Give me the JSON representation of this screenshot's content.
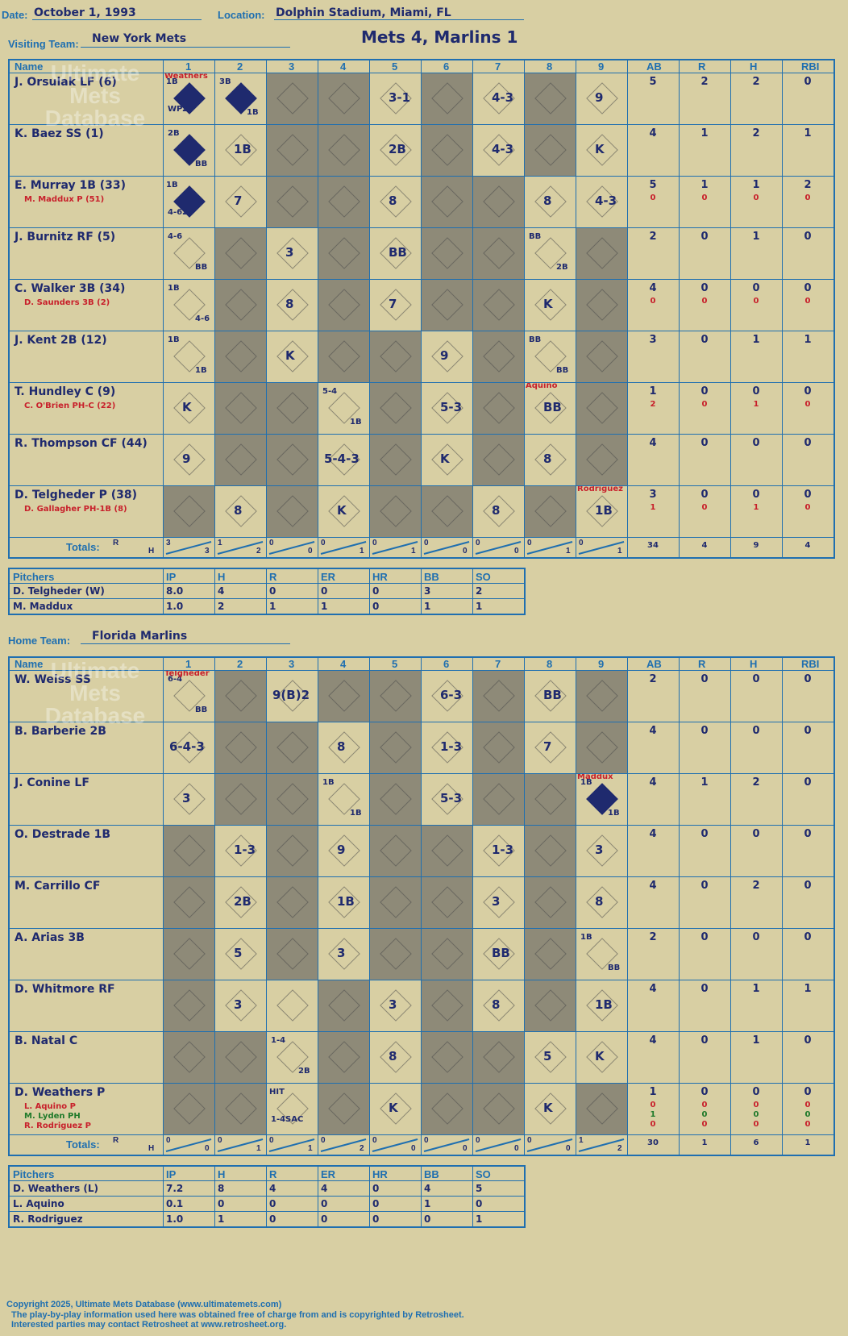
{
  "header": {
    "date_label": "Date:",
    "date": "October 1, 1993",
    "location_label": "Location:",
    "location": "Dolphin Stadium, Miami, FL",
    "title": "Mets 4, Marlins 1",
    "visiting_label": "Visiting Team:",
    "visiting_team": "New York Mets",
    "home_label": "Home Team:",
    "home_team": "Florida Marlins"
  },
  "columns": {
    "name": "Name",
    "innings": [
      "1",
      "2",
      "3",
      "4",
      "5",
      "6",
      "7",
      "8",
      "9"
    ],
    "ab": "AB",
    "r": "R",
    "h": "H",
    "rbi": "RBI",
    "totals": "Totals:",
    "rh_r": "R",
    "rh_h": "H"
  },
  "watermark": {
    "line1": "Ultimate",
    "line2": "Mets",
    "line3": "Database",
    "url": "ultimatemets.com"
  },
  "visitors": {
    "players": [
      {
        "name": "J. Orsulak LF (6)",
        "ab": "5",
        "r": "2",
        "h": "2",
        "rbi": "0",
        "subs": []
      },
      {
        "name": "K. Baez SS (1)",
        "ab": "4",
        "r": "1",
        "h": "2",
        "rbi": "1",
        "subs": []
      },
      {
        "name": "E. Murray 1B (33)",
        "ab": "5",
        "r": "1",
        "h": "1",
        "rbi": "2",
        "subs": [
          {
            "name": "M. Maddux P (51)",
            "ab": "0",
            "r": "0",
            "h": "0",
            "rbi": "0"
          }
        ]
      },
      {
        "name": "J. Burnitz RF (5)",
        "ab": "2",
        "r": "0",
        "h": "1",
        "rbi": "0",
        "subs": []
      },
      {
        "name": "C. Walker 3B (34)",
        "ab": "4",
        "r": "0",
        "h": "0",
        "rbi": "0",
        "subs": [
          {
            "name": "D. Saunders 3B (2)",
            "ab": "0",
            "r": "0",
            "h": "0",
            "rbi": "0"
          }
        ]
      },
      {
        "name": "J. Kent 2B (12)",
        "ab": "3",
        "r": "0",
        "h": "1",
        "rbi": "1",
        "subs": []
      },
      {
        "name": "T. Hundley C (9)",
        "ab": "1",
        "r": "0",
        "h": "0",
        "rbi": "0",
        "subs": [
          {
            "name": "C. O'Brien PH-C (22)",
            "ab": "2",
            "r": "0",
            "h": "1",
            "rbi": "0"
          }
        ]
      },
      {
        "name": "R. Thompson CF (44)",
        "ab": "4",
        "r": "0",
        "h": "0",
        "rbi": "0",
        "subs": []
      },
      {
        "name": "D. Telgheder P (38)",
        "ab": "3",
        "r": "0",
        "h": "0",
        "rbi": "0",
        "subs": [
          {
            "name": "D. Gallagher PH-1B (8)",
            "ab": "1",
            "r": "0",
            "h": "1",
            "rbi": "0"
          }
        ]
      }
    ],
    "totals": {
      "innings": [
        [
          "3",
          "3"
        ],
        [
          "1",
          "2"
        ],
        [
          "0",
          "0"
        ],
        [
          "0",
          "1"
        ],
        [
          "0",
          "1"
        ],
        [
          "0",
          "0"
        ],
        [
          "0",
          "0"
        ],
        [
          "0",
          "1"
        ],
        [
          "0",
          "1"
        ]
      ],
      "ab": "34",
      "r": "4",
      "h": "9",
      "rbi": "4"
    },
    "pitchers_header": [
      "Pitchers",
      "IP",
      "H",
      "R",
      "ER",
      "HR",
      "BB",
      "SO"
    ],
    "pitchers": [
      [
        "D. Telgheder (W)",
        "8.0",
        "4",
        "0",
        "0",
        "0",
        "3",
        "2"
      ],
      [
        "M. Maddux",
        "1.0",
        "2",
        "1",
        "1",
        "0",
        "1",
        "1"
      ]
    ]
  },
  "home": {
    "players": [
      {
        "name": "W. Weiss SS",
        "ab": "2",
        "r": "0",
        "h": "0",
        "rbi": "0",
        "subs": []
      },
      {
        "name": "B. Barberie 2B",
        "ab": "4",
        "r": "0",
        "h": "0",
        "rbi": "0",
        "subs": []
      },
      {
        "name": "J. Conine LF",
        "ab": "4",
        "r": "1",
        "h": "2",
        "rbi": "0",
        "subs": []
      },
      {
        "name": "O. Destrade 1B",
        "ab": "4",
        "r": "0",
        "h": "0",
        "rbi": "0",
        "subs": []
      },
      {
        "name": "M. Carrillo CF",
        "ab": "4",
        "r": "0",
        "h": "2",
        "rbi": "0",
        "subs": []
      },
      {
        "name": "A. Arias 3B",
        "ab": "2",
        "r": "0",
        "h": "0",
        "rbi": "0",
        "subs": []
      },
      {
        "name": "D. Whitmore RF",
        "ab": "4",
        "r": "0",
        "h": "1",
        "rbi": "1",
        "subs": []
      },
      {
        "name": "B. Natal C",
        "ab": "4",
        "r": "0",
        "h": "1",
        "rbi": "0",
        "subs": []
      },
      {
        "name": "D. Weathers P",
        "ab": "1",
        "r": "0",
        "h": "0",
        "rbi": "0",
        "subs": [
          {
            "name": "L. Aquino P",
            "ab": "0",
            "r": "0",
            "h": "0",
            "rbi": "0"
          },
          {
            "name": "M. Lyden PH",
            "ab": "1",
            "r": "0",
            "h": "0",
            "rbi": "0"
          },
          {
            "name": "R. Rodriguez P",
            "ab": "0",
            "r": "0",
            "h": "0",
            "rbi": "0"
          }
        ]
      }
    ],
    "totals": {
      "innings": [
        [
          "0",
          "0"
        ],
        [
          "0",
          "1"
        ],
        [
          "0",
          "1"
        ],
        [
          "0",
          "2"
        ],
        [
          "0",
          "0"
        ],
        [
          "0",
          "0"
        ],
        [
          "0",
          "0"
        ],
        [
          "0",
          "0"
        ],
        [
          "1",
          "2"
        ]
      ],
      "ab": "30",
      "r": "1",
      "h": "6",
      "rbi": "1"
    },
    "pitchers_header": [
      "Pitchers",
      "IP",
      "H",
      "R",
      "ER",
      "HR",
      "BB",
      "SO"
    ],
    "pitchers": [
      [
        "D. Weathers (L)",
        "7.2",
        "8",
        "4",
        "4",
        "0",
        "4",
        "5"
      ],
      [
        "L. Aquino",
        "0.1",
        "0",
        "0",
        "0",
        "0",
        "1",
        "0"
      ],
      [
        "R. Rodriguez",
        "1.0",
        "1",
        "0",
        "0",
        "0",
        "0",
        "1"
      ]
    ]
  },
  "plays_visitors": [
    [
      [
        "1",
        "WP 2B 1B",
        true,
        "Weathers"
      ],
      [
        "2",
        "3B 1B",
        true,
        ""
      ],
      [
        "3",
        "",
        false,
        ""
      ],
      [
        "4",
        "",
        false,
        ""
      ],
      [
        "5",
        "3-1",
        false,
        ""
      ],
      [
        "6",
        "",
        false,
        ""
      ],
      [
        "7",
        "4-3",
        false,
        ""
      ],
      [
        "8",
        "",
        false,
        ""
      ],
      [
        "9",
        "9",
        false,
        ""
      ]
    ],
    [
      [
        "1",
        "2B BB",
        true,
        ""
      ],
      [
        "2",
        "1B",
        false,
        ""
      ],
      [
        "3",
        "",
        false,
        ""
      ],
      [
        "4",
        "",
        false,
        ""
      ],
      [
        "5",
        "2B",
        false,
        ""
      ],
      [
        "6",
        "",
        false,
        ""
      ],
      [
        "7",
        "4-3",
        false,
        ""
      ],
      [
        "8",
        "",
        false,
        ""
      ],
      [
        "9",
        "K",
        false,
        ""
      ]
    ],
    [
      [
        "1",
        "4-6 2B 1B",
        true,
        ""
      ],
      [
        "2",
        "7",
        false,
        ""
      ],
      [
        "3",
        "",
        false,
        ""
      ],
      [
        "4",
        "",
        false,
        ""
      ],
      [
        "5",
        "8",
        false,
        ""
      ],
      [
        "6",
        "",
        false,
        ""
      ],
      [
        "7",
        "",
        false,
        ""
      ],
      [
        "8",
        "8",
        false,
        ""
      ],
      [
        "9",
        "4-3",
        false,
        ""
      ]
    ],
    [
      [
        "1",
        "4-6 BB",
        false,
        ""
      ],
      [
        "2",
        "",
        false,
        ""
      ],
      [
        "3",
        "3",
        false,
        ""
      ],
      [
        "4",
        "",
        false,
        ""
      ],
      [
        "5",
        "BB",
        false,
        ""
      ],
      [
        "6",
        "",
        false,
        ""
      ],
      [
        "7",
        "",
        false,
        ""
      ],
      [
        "8",
        "BB 2B",
        false,
        ""
      ],
      [
        "9",
        "",
        false,
        ""
      ]
    ],
    [
      [
        "1",
        "1B 4-6",
        false,
        ""
      ],
      [
        "2",
        "",
        false,
        ""
      ],
      [
        "3",
        "8",
        false,
        ""
      ],
      [
        "4",
        "",
        false,
        ""
      ],
      [
        "5",
        "7",
        false,
        ""
      ],
      [
        "6",
        "",
        false,
        ""
      ],
      [
        "7",
        "",
        false,
        ""
      ],
      [
        "8",
        "K",
        false,
        ""
      ],
      [
        "9",
        "",
        false,
        ""
      ]
    ],
    [
      [
        "1",
        "1B 1B",
        false,
        ""
      ],
      [
        "2",
        "",
        false,
        ""
      ],
      [
        "3",
        "K",
        false,
        ""
      ],
      [
        "4",
        "",
        false,
        ""
      ],
      [
        "5",
        "",
        false,
        ""
      ],
      [
        "6",
        "9",
        false,
        ""
      ],
      [
        "7",
        "",
        false,
        ""
      ],
      [
        "8",
        "BB BB",
        false,
        ""
      ],
      [
        "9",
        "",
        false,
        ""
      ]
    ],
    [
      [
        "1",
        "K",
        false,
        ""
      ],
      [
        "2",
        "",
        false,
        ""
      ],
      [
        "3",
        "",
        false,
        ""
      ],
      [
        "4",
        "5-4 1B",
        false,
        ""
      ],
      [
        "5",
        "",
        false,
        ""
      ],
      [
        "6",
        "5-3",
        false,
        ""
      ],
      [
        "7",
        "",
        false,
        ""
      ],
      [
        "8",
        "BB",
        false,
        "Aquino"
      ],
      [
        "9",
        "",
        false,
        ""
      ]
    ],
    [
      [
        "1",
        "9",
        false,
        ""
      ],
      [
        "2",
        "",
        false,
        ""
      ],
      [
        "3",
        "",
        false,
        ""
      ],
      [
        "4",
        "5-4-3",
        false,
        ""
      ],
      [
        "5",
        "",
        false,
        ""
      ],
      [
        "6",
        "K",
        false,
        ""
      ],
      [
        "7",
        "",
        false,
        ""
      ],
      [
        "8",
        "8",
        false,
        ""
      ],
      [
        "9",
        "",
        false,
        ""
      ]
    ],
    [
      [
        "1",
        "",
        false,
        ""
      ],
      [
        "2",
        "8",
        false,
        ""
      ],
      [
        "3",
        "",
        false,
        ""
      ],
      [
        "4",
        "K",
        false,
        ""
      ],
      [
        "5",
        "",
        false,
        ""
      ],
      [
        "6",
        "",
        false,
        ""
      ],
      [
        "7",
        "8",
        false,
        ""
      ],
      [
        "8",
        "",
        false,
        ""
      ],
      [
        "9",
        "1B",
        false,
        "Rodriguez"
      ]
    ]
  ],
  "plays_home": [
    [
      [
        "1",
        "6-4 BB",
        false,
        "Telgheder"
      ],
      [
        "2",
        "",
        false,
        ""
      ],
      [
        "3",
        "9(B)2",
        false,
        ""
      ],
      [
        "4",
        "",
        false,
        ""
      ],
      [
        "5",
        "",
        false,
        ""
      ],
      [
        "6",
        "6-3",
        false,
        ""
      ],
      [
        "7",
        "",
        false,
        ""
      ],
      [
        "8",
        "BB",
        false,
        ""
      ],
      [
        "9",
        "",
        false,
        ""
      ]
    ],
    [
      [
        "1",
        "6-4-3",
        false,
        ""
      ],
      [
        "2",
        "",
        false,
        ""
      ],
      [
        "3",
        "",
        false,
        ""
      ],
      [
        "4",
        "8",
        false,
        ""
      ],
      [
        "5",
        "",
        false,
        ""
      ],
      [
        "6",
        "1-3",
        false,
        ""
      ],
      [
        "7",
        "",
        false,
        ""
      ],
      [
        "8",
        "7",
        false,
        ""
      ],
      [
        "9",
        "",
        false,
        ""
      ]
    ],
    [
      [
        "1",
        "3",
        false,
        ""
      ],
      [
        "2",
        "",
        false,
        ""
      ],
      [
        "3",
        "",
        false,
        ""
      ],
      [
        "4",
        "1B 1B",
        false,
        ""
      ],
      [
        "5",
        "",
        false,
        ""
      ],
      [
        "6",
        "5-3",
        false,
        ""
      ],
      [
        "7",
        "",
        false,
        ""
      ],
      [
        "8",
        "",
        false,
        ""
      ],
      [
        "9",
        "1B 1B",
        true,
        "Maddux"
      ]
    ],
    [
      [
        "1",
        "",
        false,
        ""
      ],
      [
        "2",
        "1-3",
        false,
        ""
      ],
      [
        "3",
        "",
        false,
        ""
      ],
      [
        "4",
        "9",
        false,
        ""
      ],
      [
        "5",
        "",
        false,
        ""
      ],
      [
        "6",
        "",
        false,
        ""
      ],
      [
        "7",
        "1-3",
        false,
        ""
      ],
      [
        "8",
        "",
        false,
        ""
      ],
      [
        "9",
        "3",
        false,
        ""
      ]
    ],
    [
      [
        "1",
        "",
        false,
        ""
      ],
      [
        "2",
        "2B",
        false,
        ""
      ],
      [
        "3",
        "",
        false,
        ""
      ],
      [
        "4",
        "1B",
        false,
        ""
      ],
      [
        "5",
        "",
        false,
        ""
      ],
      [
        "6",
        "",
        false,
        ""
      ],
      [
        "7",
        "3",
        false,
        ""
      ],
      [
        "8",
        "",
        false,
        ""
      ],
      [
        "9",
        "8",
        false,
        ""
      ]
    ],
    [
      [
        "1",
        "",
        false,
        ""
      ],
      [
        "2",
        "5",
        false,
        ""
      ],
      [
        "3",
        "",
        false,
        ""
      ],
      [
        "4",
        "3",
        false,
        ""
      ],
      [
        "5",
        "",
        false,
        ""
      ],
      [
        "6",
        "",
        false,
        ""
      ],
      [
        "7",
        "BB",
        false,
        ""
      ],
      [
        "8",
        "",
        false,
        ""
      ],
      [
        "9",
        "1B BB",
        false,
        ""
      ]
    ],
    [
      [
        "1",
        "",
        false,
        ""
      ],
      [
        "2",
        "3",
        false,
        ""
      ],
      [
        "3",
        "",
        false,
        ""
      ],
      [
        "4",
        "",
        false,
        ""
      ],
      [
        "5",
        "3",
        false,
        ""
      ],
      [
        "6",
        "",
        false,
        ""
      ],
      [
        "7",
        "8",
        false,
        ""
      ],
      [
        "8",
        "",
        false,
        ""
      ],
      [
        "9",
        "1B",
        false,
        ""
      ]
    ],
    [
      [
        "1",
        "",
        false,
        ""
      ],
      [
        "2",
        "",
        false,
        ""
      ],
      [
        "3",
        "1-4 2B",
        false,
        ""
      ],
      [
        "4",
        "",
        false,
        ""
      ],
      [
        "5",
        "8",
        false,
        ""
      ],
      [
        "6",
        "",
        false,
        ""
      ],
      [
        "7",
        "",
        false,
        ""
      ],
      [
        "8",
        "5",
        false,
        ""
      ],
      [
        "9",
        "K",
        false,
        ""
      ]
    ],
    [
      [
        "1",
        "",
        false,
        ""
      ],
      [
        "2",
        "",
        false,
        ""
      ],
      [
        "3",
        "1-4 SAC HIT",
        false,
        ""
      ],
      [
        "4",
        "",
        false,
        ""
      ],
      [
        "5",
        "K",
        false,
        ""
      ],
      [
        "6",
        "",
        false,
        ""
      ],
      [
        "7",
        "",
        false,
        ""
      ],
      [
        "8",
        "K",
        false,
        ""
      ],
      [
        "9",
        "",
        false,
        ""
      ]
    ]
  ],
  "gray_visitors": [
    [
      3,
      4,
      6,
      8
    ],
    [
      3,
      4,
      6,
      8
    ],
    [
      3,
      4,
      6,
      7
    ],
    [
      2,
      4,
      6,
      7,
      9
    ],
    [
      2,
      4,
      6,
      7,
      9
    ],
    [
      2,
      4,
      5,
      7,
      9
    ],
    [
      2,
      3,
      5,
      7,
      9
    ],
    [
      2,
      3,
      5,
      7,
      9
    ],
    [
      1,
      3,
      5,
      6,
      8
    ]
  ],
  "gray_home": [
    [
      2,
      4,
      5,
      7,
      9
    ],
    [
      2,
      3,
      5,
      7,
      9
    ],
    [
      2,
      3,
      5,
      7,
      8
    ],
    [
      1,
      3,
      5,
      6,
      8
    ],
    [
      1,
      3,
      5,
      6,
      8
    ],
    [
      1,
      3,
      5,
      6,
      8
    ],
    [
      1,
      4,
      6,
      8
    ],
    [
      1,
      2,
      4,
      6,
      7
    ],
    [
      1,
      2,
      4,
      6,
      7,
      9
    ]
  ],
  "footer": {
    "line1": "Copyright 2025, Ultimate Mets Database (www.ultimatemets.com)",
    "line2": "The play-by-play information used here was obtained free of charge from and is copyrighted by Retrosheet.",
    "line3": "Interested parties may contact Retrosheet at www.retrosheet.org."
  },
  "colors": {
    "bg": "#d8cfa3",
    "line": "#1f6fb0",
    "ink": "#1f2a6e",
    "gray": "#8e8a78",
    "sub_red": "#c8202b",
    "sub_green": "#1f7a2a"
  }
}
